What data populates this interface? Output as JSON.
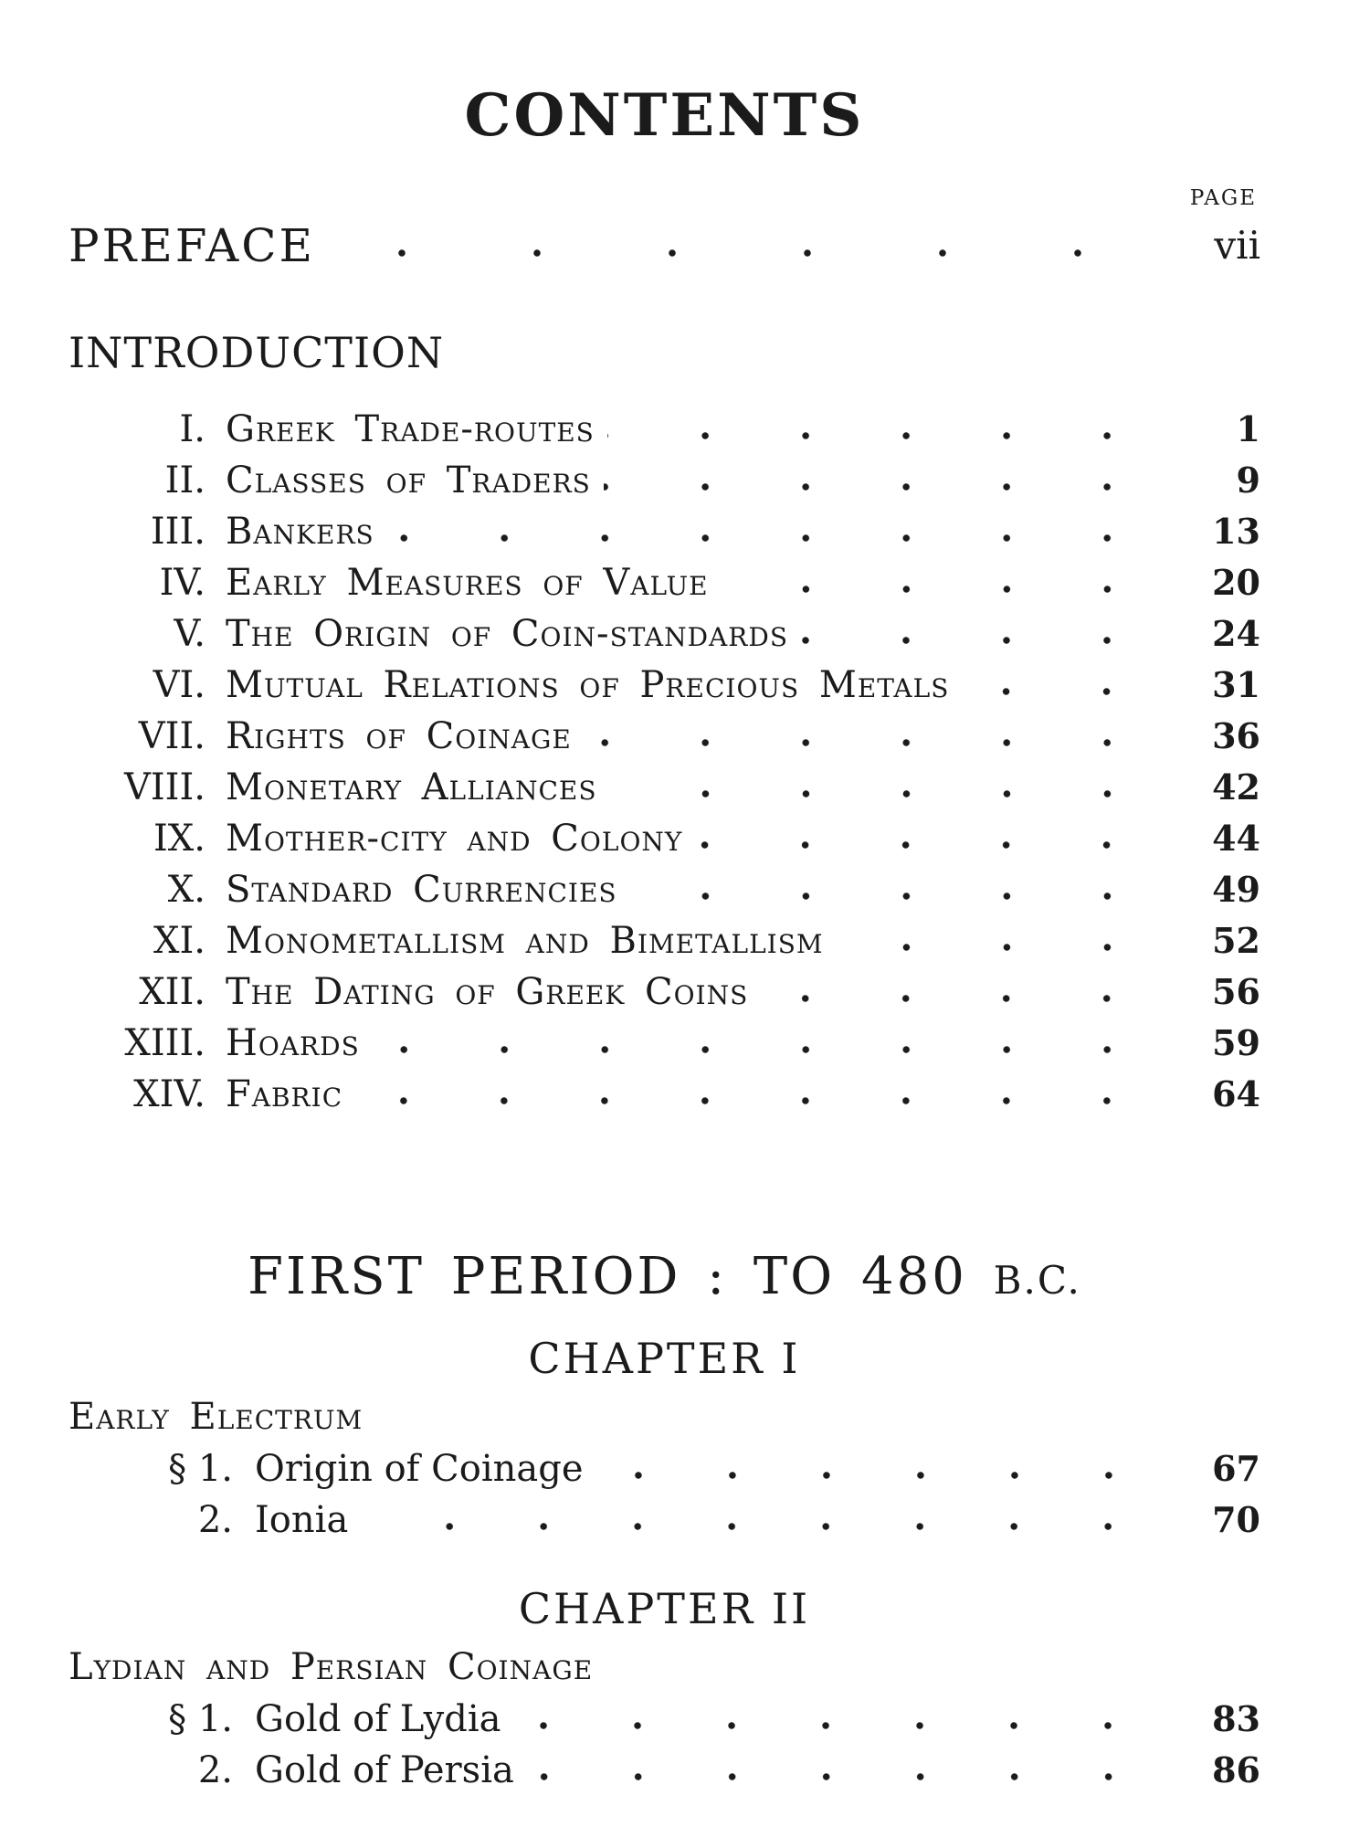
{
  "page": {
    "title": "CONTENTS",
    "page_column_label": "PAGE"
  },
  "preface": {
    "label": "PREFACE",
    "page": "vii"
  },
  "introduction": {
    "heading": "INTRODUCTION",
    "items": [
      {
        "numeral": "I.",
        "title": "Greek Trade-routes",
        "page": "1"
      },
      {
        "numeral": "II.",
        "title": "Classes of Traders",
        "page": "9"
      },
      {
        "numeral": "III.",
        "title": "Bankers",
        "page": "13"
      },
      {
        "numeral": "IV.",
        "title": "Early Measures of Value",
        "page": "20"
      },
      {
        "numeral": "V.",
        "title": "The Origin of Coin-standards",
        "page": "24"
      },
      {
        "numeral": "VI.",
        "title": "Mutual Relations of Precious Metals",
        "page": "31"
      },
      {
        "numeral": "VII.",
        "title": "Rights of Coinage",
        "page": "36"
      },
      {
        "numeral": "VIII.",
        "title": "Monetary Alliances",
        "page": "42"
      },
      {
        "numeral": "IX.",
        "title": "Mother-city and Colony",
        "page": "44"
      },
      {
        "numeral": "X.",
        "title": "Standard Currencies",
        "page": "49"
      },
      {
        "numeral": "XI.",
        "title": "Monometallism and Bimetallism",
        "page": "52"
      },
      {
        "numeral": "XII.",
        "title": "The Dating of Greek Coins",
        "page": "56"
      },
      {
        "numeral": "XIII.",
        "title": "Hoards",
        "page": "59"
      },
      {
        "numeral": "XIV.",
        "title": "Fabric",
        "page": "64"
      }
    ]
  },
  "first_period": {
    "heading_main": "FIRST PERIOD : TO 480",
    "heading_era": "B.C.",
    "chapters": [
      {
        "heading": "CHAPTER I",
        "section_title": "Early Electrum",
        "items": [
          {
            "marker": "§ 1.",
            "title": "Origin of Coinage",
            "page": "67"
          },
          {
            "marker": "2.",
            "title": "Ionia",
            "page": "70"
          }
        ]
      },
      {
        "heading": "CHAPTER II",
        "section_title": "Lydian and Persian Coinage",
        "items": [
          {
            "marker": "§ 1.",
            "title": "Gold of Lydia",
            "page": "83"
          },
          {
            "marker": "2.",
            "title": "Gold of Persia",
            "page": "86"
          }
        ]
      }
    ]
  }
}
